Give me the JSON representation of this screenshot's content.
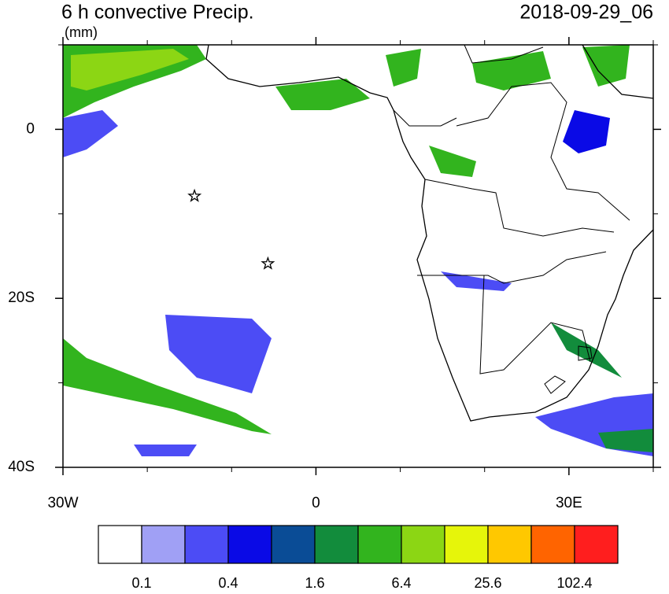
{
  "chart_data": {
    "type": "map",
    "title": "6 h convective Precip.",
    "units": "(mm)",
    "date": "2018-09-29_06",
    "xlim": [
      -30,
      40
    ],
    "ylim": [
      -40,
      10
    ],
    "xticks": [
      {
        "value": -30,
        "label": "30W"
      },
      0,
      {
        "value": 30,
        "label": "30E"
      }
    ],
    "yticks": [
      {
        "value": -40,
        "label": "40S"
      },
      {
        "value": -20,
        "label": "20S"
      },
      0
    ],
    "minor_xticks": [
      -20,
      -10,
      10,
      20,
      40
    ],
    "minor_yticks": [
      -30,
      -10,
      10
    ],
    "markers": [
      {
        "lon": -14.4,
        "lat": -7.9
      },
      {
        "lon": -5.7,
        "lat": -15.9
      }
    ],
    "colorbar": {
      "colors": [
        "#ffffff",
        "#a0a0f5",
        "#4c4cf5",
        "#0a0ae6",
        "#0a4c96",
        "#128c3c",
        "#32b41e",
        "#8cd614",
        "#e6f50a",
        "#ffc800",
        "#ff6400",
        "#ff1e1e"
      ],
      "labels": [
        0.1,
        0.4,
        1.6,
        6.4,
        25.6,
        102.4
      ]
    }
  }
}
